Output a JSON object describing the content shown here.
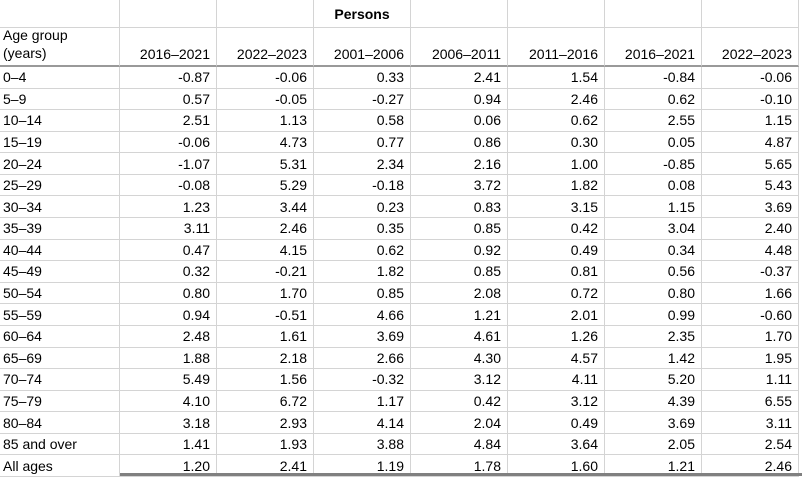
{
  "title_row": {
    "persons_label": "Persons"
  },
  "header": {
    "age_group_line1": "Age group",
    "age_group_line2": "(years)",
    "year_columns": [
      "2016–2021",
      "2022–2023",
      "2001–2006",
      "2006–2011",
      "2011–2016",
      "2016–2021",
      "2022–2023"
    ]
  },
  "rows": [
    {
      "label": "0–4",
      "values": [
        "-0.87",
        "-0.06",
        "0.33",
        "2.41",
        "1.54",
        "-0.84",
        "-0.06"
      ]
    },
    {
      "label": "5–9",
      "values": [
        "0.57",
        "-0.05",
        "-0.27",
        "0.94",
        "2.46",
        "0.62",
        "-0.10"
      ]
    },
    {
      "label": "10–14",
      "values": [
        "2.51",
        "1.13",
        "0.58",
        "0.06",
        "0.62",
        "2.55",
        "1.15"
      ]
    },
    {
      "label": "15–19",
      "values": [
        "-0.06",
        "4.73",
        "0.77",
        "0.86",
        "0.30",
        "0.05",
        "4.87"
      ]
    },
    {
      "label": "20–24",
      "values": [
        "-1.07",
        "5.31",
        "2.34",
        "2.16",
        "1.00",
        "-0.85",
        "5.65"
      ]
    },
    {
      "label": "25–29",
      "values": [
        "-0.08",
        "5.29",
        "-0.18",
        "3.72",
        "1.82",
        "0.08",
        "5.43"
      ]
    },
    {
      "label": "30–34",
      "values": [
        "1.23",
        "3.44",
        "0.23",
        "0.83",
        "3.15",
        "1.15",
        "3.69"
      ]
    },
    {
      "label": "35–39",
      "values": [
        "3.11",
        "2.46",
        "0.35",
        "0.85",
        "0.42",
        "3.04",
        "2.40"
      ]
    },
    {
      "label": "40–44",
      "values": [
        "0.47",
        "4.15",
        "0.62",
        "0.92",
        "0.49",
        "0.34",
        "4.48"
      ]
    },
    {
      "label": "45–49",
      "values": [
        "0.32",
        "-0.21",
        "1.82",
        "0.85",
        "0.81",
        "0.56",
        "-0.37"
      ]
    },
    {
      "label": "50–54",
      "values": [
        "0.80",
        "1.70",
        "0.85",
        "2.08",
        "0.72",
        "0.80",
        "1.66"
      ]
    },
    {
      "label": "55–59",
      "values": [
        "0.94",
        "-0.51",
        "4.66",
        "1.21",
        "2.01",
        "0.99",
        "-0.60"
      ]
    },
    {
      "label": "60–64",
      "values": [
        "2.48",
        "1.61",
        "3.69",
        "4.61",
        "1.26",
        "2.35",
        "1.70"
      ]
    },
    {
      "label": "65–69",
      "values": [
        "1.88",
        "2.18",
        "2.66",
        "4.30",
        "4.57",
        "1.42",
        "1.95"
      ]
    },
    {
      "label": "70–74",
      "values": [
        "5.49",
        "1.56",
        "-0.32",
        "3.12",
        "4.11",
        "5.20",
        "1.11"
      ]
    },
    {
      "label": "75–79",
      "values": [
        "4.10",
        "6.72",
        "1.17",
        "0.42",
        "3.12",
        "4.39",
        "6.55"
      ]
    },
    {
      "label": "80–84",
      "values": [
        "3.18",
        "2.93",
        "4.14",
        "2.04",
        "0.49",
        "3.69",
        "3.11"
      ]
    },
    {
      "label": "85 and over",
      "values": [
        "1.41",
        "1.93",
        "3.88",
        "4.84",
        "3.64",
        "2.05",
        "2.54"
      ]
    },
    {
      "label": "All ages",
      "values": [
        "1.20",
        "2.41",
        "1.19",
        "1.78",
        "1.60",
        "1.21",
        "2.46"
      ]
    }
  ],
  "colors": {
    "gridline": "#d4d4d4",
    "header_underline": "#999999",
    "bottom_border": "#808080",
    "text": "#000000",
    "background": "#ffffff"
  }
}
